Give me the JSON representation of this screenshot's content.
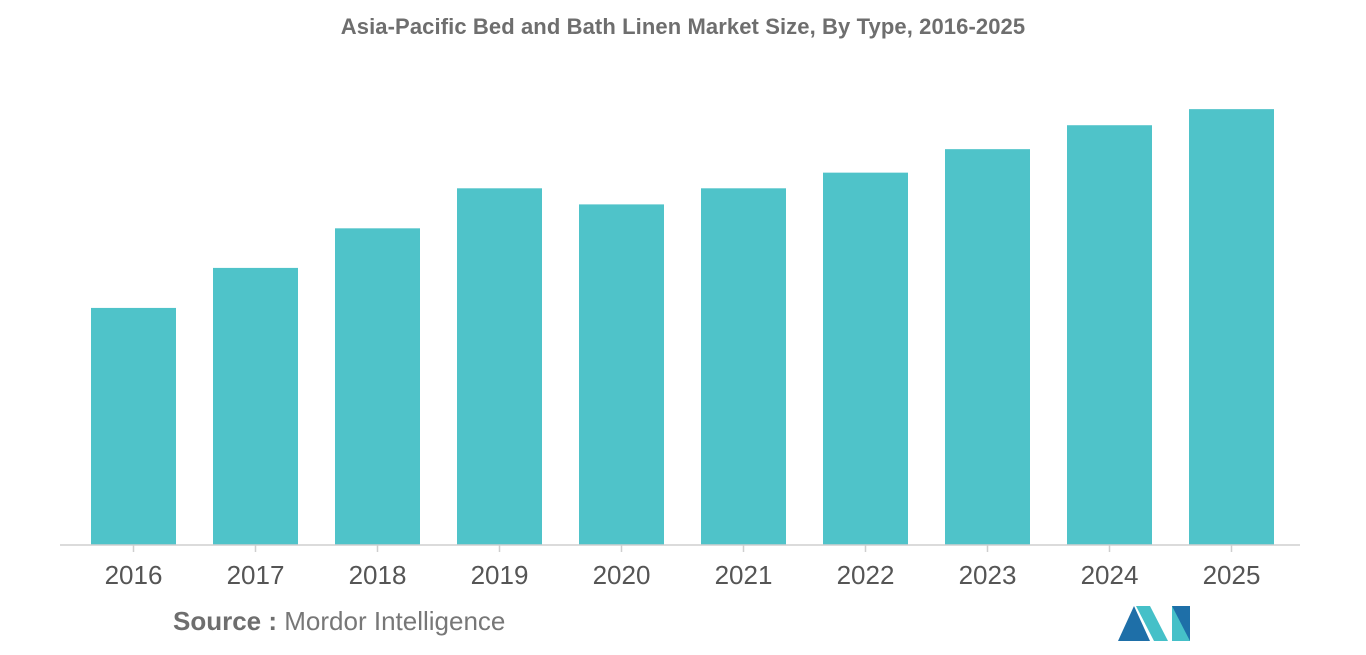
{
  "source": {
    "label": "Source :",
    "text": "Mordor Intelligence"
  },
  "colors": {
    "bar": "#4fc3c9",
    "axis": "#cfcfcf",
    "logo_dark": "#1e6fa8",
    "logo_light": "#45c0c8"
  },
  "logo": {
    "icon": "mordor-intelligence-logo-icon"
  },
  "chart_data": {
    "type": "bar",
    "title": "Asia-Pacific Bed and Bath Linen Market Size, By Type, 2016-2025",
    "xlabel": "",
    "ylabel": "",
    "categories": [
      "2016",
      "2017",
      "2018",
      "2019",
      "2020",
      "2021",
      "2022",
      "2023",
      "2024",
      "2025"
    ],
    "values": [
      54.5,
      63.7,
      72.8,
      82,
      78.3,
      82,
      85.6,
      91,
      96.5,
      100.2
    ],
    "ylim": [
      0,
      105
    ],
    "grid": false,
    "legend": "none"
  }
}
